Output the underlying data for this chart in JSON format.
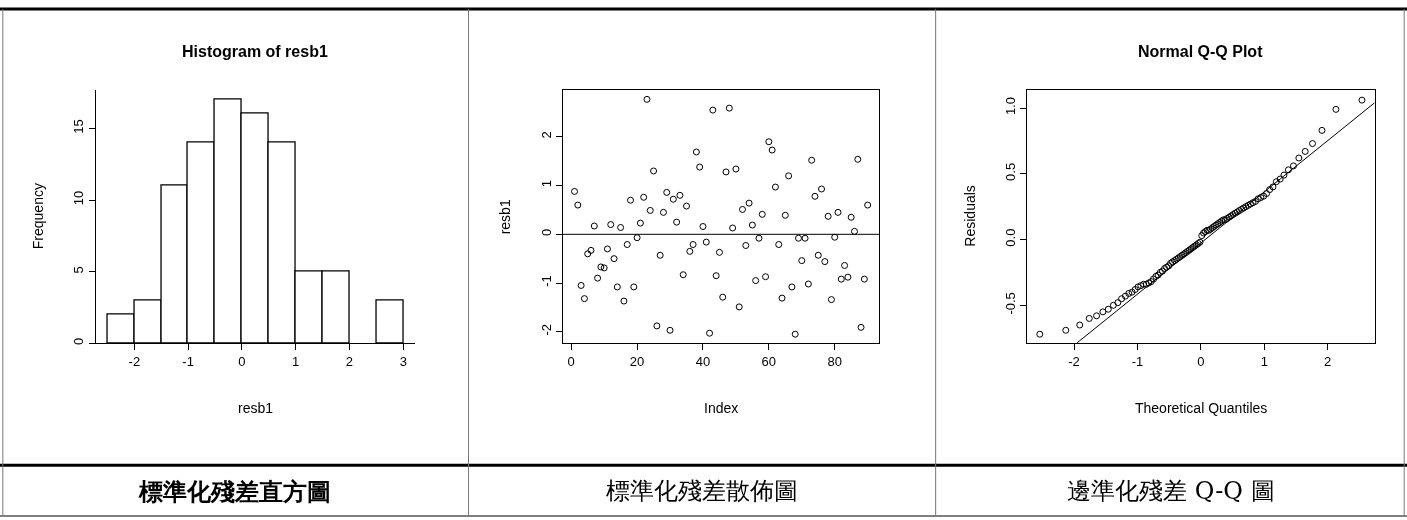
{
  "chart_data": [
    {
      "type": "histogram",
      "title": "Histogram of resb1",
      "xlabel": "resb1",
      "ylabel": "Frequency",
      "bins": [
        -2.5,
        -2,
        -1.5,
        -1,
        -0.5,
        0,
        0.5,
        1,
        1.5,
        2,
        2.5,
        3
      ],
      "values": [
        2,
        3,
        11,
        14,
        17,
        16,
        14,
        5,
        5,
        0,
        3
      ],
      "color": "#ffffff",
      "xlim": [
        -2.72,
        3.22
      ],
      "xticks": [
        -2,
        -1,
        0,
        1,
        2,
        3
      ],
      "ylim": [
        0,
        17.7
      ],
      "yticks": [
        0,
        5,
        10,
        15
      ],
      "annotations": [
        "標準化殘差直方圖"
      ]
    },
    {
      "type": "scatter",
      "xlabel": "Index",
      "ylabel": "resb1",
      "marker": "circle",
      "color": "#000000",
      "x": [
        1,
        2,
        3,
        4,
        5,
        6,
        7,
        8,
        9,
        10,
        11,
        12,
        13,
        14,
        15,
        16,
        17,
        18,
        19,
        20,
        21,
        22,
        23,
        24,
        25,
        26,
        27,
        28,
        29,
        30,
        31,
        32,
        33,
        34,
        35,
        36,
        37,
        38,
        39,
        40,
        41,
        42,
        43,
        44,
        45,
        46,
        47,
        48,
        49,
        50,
        51,
        52,
        53,
        54,
        55,
        56,
        57,
        58,
        59,
        60,
        61,
        62,
        63,
        64,
        65,
        66,
        67,
        68,
        69,
        70,
        71,
        72,
        73,
        74,
        75,
        76,
        77,
        78,
        79,
        80,
        81,
        82,
        83,
        84,
        85,
        86,
        87,
        88,
        89,
        90
      ],
      "values": [
        0.88,
        0.6,
        -1.05,
        -1.32,
        -0.4,
        -0.33,
        0.17,
        -0.9,
        -0.67,
        -0.69,
        -0.3,
        0.2,
        -0.5,
        -1.08,
        0.14,
        -1.37,
        -0.21,
        0.7,
        -1.08,
        -0.07,
        0.23,
        0.76,
        2.77,
        0.49,
        1.3,
        -1.88,
        -0.43,
        0.45,
        0.86,
        -1.97,
        0.72,
        0.25,
        0.8,
        -0.83,
        0.58,
        -0.35,
        -0.21,
        1.69,
        1.38,
        0.16,
        -0.16,
        -2.03,
        2.55,
        -0.85,
        -0.37,
        -1.29,
        1.28,
        2.59,
        0.13,
        1.34,
        -1.49,
        0.51,
        -0.23,
        0.64,
        0.19,
        -0.95,
        -0.08,
        0.41,
        -0.87,
        1.9,
        1.73,
        0.97,
        -0.21,
        -1.31,
        0.39,
        1.2,
        -1.08,
        -2.05,
        -0.08,
        -0.54,
        -0.08,
        -1.02,
        1.52,
        0.78,
        -0.43,
        0.93,
        -0.56,
        0.37,
        -1.34,
        -0.06,
        0.45,
        -0.92,
        -0.64,
        -0.88,
        0.35,
        0.06,
        1.54,
        -1.91,
        -0.92,
        0.6
      ],
      "xlim": [
        -2.56,
        93.56
      ],
      "xticks": [
        0,
        20,
        40,
        60,
        80
      ],
      "ylim": [
        -2.24,
        2.97
      ],
      "yticks": [
        -2,
        -1,
        0,
        1,
        2
      ],
      "ref_lines": [
        {
          "axis": "y",
          "value": 0,
          "color": "#000000"
        }
      ],
      "annotations": [
        "標準化殘差散佈圖"
      ]
    },
    {
      "type": "scatter",
      "title": "Normal Q-Q Plot",
      "xlabel": "Theoretical Quantiles",
      "ylabel": "Residuals",
      "marker": "circle",
      "xlim": [
        -2.74,
        2.74
      ],
      "xticks": [
        -2,
        -1,
        0,
        1,
        2
      ],
      "ylim": [
        -0.79,
        1.14
      ],
      "yticks": [
        {
          "value": -0.5,
          "label": "-0.5"
        },
        {
          "value": 0,
          "label": "0.0"
        },
        {
          "value": 0.5,
          "label": "0.5"
        },
        {
          "value": 1,
          "label": "1.0"
        }
      ],
      "series": [
        {
          "type": "scatter",
          "color": "#000000",
          "x": [
            -2.54,
            -2.13,
            -1.91,
            -1.76,
            -1.645,
            -1.545,
            -1.46,
            -1.38,
            -1.31,
            -1.25,
            -1.19,
            -1.137,
            -1.085,
            -1.036,
            -0.99,
            -0.946,
            -0.903,
            -0.861,
            -0.821,
            -0.783,
            -0.746,
            -0.71,
            -0.674,
            -0.64,
            -0.606,
            -0.573,
            -0.54,
            -0.508,
            -0.477,
            -0.446,
            -0.415,
            -0.385,
            -0.355,
            -0.326,
            -0.297,
            -0.268,
            -0.239,
            -0.21,
            -0.182,
            -0.154,
            -0.126,
            -0.098,
            -0.07,
            -0.042,
            -0.014,
            0.014,
            0.042,
            0.07,
            0.098,
            0.126,
            0.154,
            0.182,
            0.21,
            0.239,
            0.268,
            0.297,
            0.326,
            0.355,
            0.385,
            0.415,
            0.446,
            0.477,
            0.508,
            0.54,
            0.573,
            0.606,
            0.64,
            0.674,
            0.71,
            0.746,
            0.783,
            0.821,
            0.861,
            0.903,
            0.946,
            0.99,
            1.036,
            1.085,
            1.137,
            1.19,
            1.25,
            1.31,
            1.38,
            1.46,
            1.545,
            1.645,
            1.76,
            1.91,
            2.13,
            2.54
          ],
          "values": [
            -0.72,
            -0.69,
            -0.65,
            -0.6,
            -0.58,
            -0.55,
            -0.53,
            -0.5,
            -0.48,
            -0.45,
            -0.43,
            -0.41,
            -0.4,
            -0.38,
            -0.36,
            -0.35,
            -0.34,
            -0.34,
            -0.33,
            -0.32,
            -0.3,
            -0.28,
            -0.27,
            -0.25,
            -0.24,
            -0.22,
            -0.21,
            -0.2,
            -0.18,
            -0.17,
            -0.16,
            -0.15,
            -0.14,
            -0.13,
            -0.12,
            -0.11,
            -0.1,
            -0.09,
            -0.08,
            -0.07,
            -0.06,
            -0.05,
            -0.04,
            -0.03,
            -0.02,
            0.03,
            0.05,
            0.06,
            0.07,
            0.07,
            0.08,
            0.09,
            0.1,
            0.11,
            0.12,
            0.13,
            0.14,
            0.15,
            0.15,
            0.16,
            0.17,
            0.18,
            0.19,
            0.2,
            0.21,
            0.22,
            0.23,
            0.24,
            0.25,
            0.26,
            0.27,
            0.28,
            0.29,
            0.31,
            0.32,
            0.33,
            0.35,
            0.38,
            0.4,
            0.44,
            0.46,
            0.49,
            0.53,
            0.56,
            0.62,
            0.67,
            0.73,
            0.83,
            0.99,
            1.06
          ]
        },
        {
          "type": "line",
          "marker": "none",
          "color": "#000000",
          "x": [
            -1.95,
            2.74
          ],
          "values": [
            -0.785,
            1.04
          ]
        }
      ],
      "annotations": [
        "邊準化殘差 Q-Q 圖"
      ]
    }
  ]
}
